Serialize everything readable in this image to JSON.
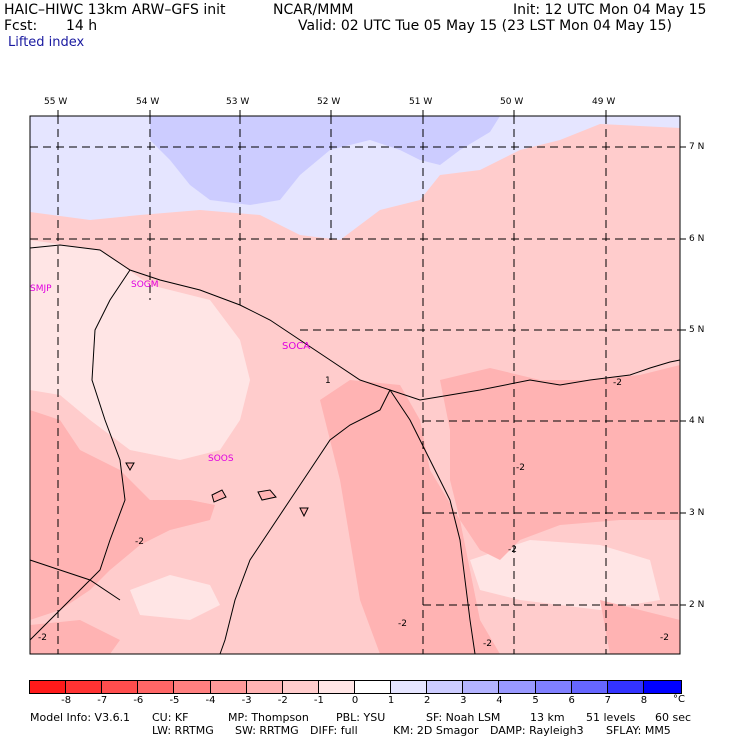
{
  "header": {
    "model": "HAIC–HIWC 13km ARW–GFS init",
    "center": "NCAR/MMM",
    "init": "Init: 12 UTC Mon 04 May 15",
    "fcst_label": "Fcst:",
    "fcst_value": "14 h",
    "valid": "Valid: 02 UTC Tue 05 May 15 (23 LST Mon 04 May 15)",
    "field": "Lifted index"
  },
  "map": {
    "lon_labels": [
      "55 W",
      "54 W",
      "53 W",
      "52 W",
      "51 W",
      "50 W",
      "49 W"
    ],
    "lat_labels": [
      "7 N",
      "6 N",
      "5 N",
      "4 N",
      "3 N",
      "2 N"
    ],
    "stations": [
      "SMJP",
      "SOGM",
      "SOCA",
      "SOOS"
    ],
    "contour_labels": [
      "1",
      "-2",
      "-2",
      "-2",
      "-2",
      "-2",
      "-2",
      "-2",
      "-2"
    ]
  },
  "colorbar": {
    "colors": [
      "#ff1a1a",
      "#ff3333",
      "#ff4d4d",
      "#ff6666",
      "#ff8080",
      "#ff9999",
      "#ffb3b3",
      "#ffcccc",
      "#ffe5e5",
      "#ffffff",
      "#e5e5ff",
      "#ccccff",
      "#b3b3ff",
      "#9999ff",
      "#8080ff",
      "#6666ff",
      "#3333ff",
      "#0000ff"
    ],
    "ticks": [
      "-8",
      "-7",
      "-6",
      "-5",
      "-4",
      "-3",
      "-2",
      "-1",
      "0",
      "1",
      "2",
      "3",
      "4",
      "5",
      "6",
      "7",
      "8"
    ],
    "unit": "°C"
  },
  "footer": {
    "line1": [
      "Model Info: V3.6.1",
      "CU: KF",
      "MP: Thompson",
      "PBL: YSU",
      "SF: Noah LSM",
      "13 km",
      "51 levels",
      "60 sec"
    ],
    "line2": [
      "LW: RRTMG",
      "SW: RRTMG",
      "DIFF: full",
      "KM: 2D Smagor",
      "DAMP: Rayleigh3",
      "SFLAY: MM5"
    ]
  }
}
